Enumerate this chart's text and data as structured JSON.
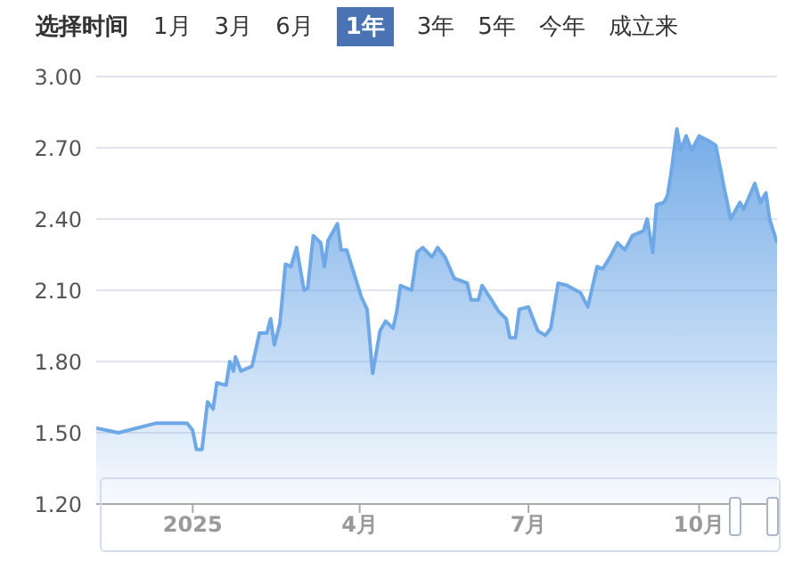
{
  "chart_data": {
    "type": "area",
    "annotations": [
      "选择时间",
      "1月",
      "3月",
      "6月",
      "1年",
      "3年",
      "5年",
      "今年",
      "成立来"
    ],
    "x": [
      "2024-11-10",
      "2024-11-22",
      "2024-12-12",
      "2024-12-29",
      "2025-01-01",
      "2025-01-03",
      "2025-01-06",
      "2025-01-09",
      "2025-01-12",
      "2025-01-14",
      "2025-01-19",
      "2025-01-21",
      "2025-01-23",
      "2025-01-24",
      "2025-01-27",
      "2025-02-02",
      "2025-02-06",
      "2025-02-10",
      "2025-02-12",
      "2025-02-14",
      "2025-02-17",
      "2025-02-20",
      "2025-02-23",
      "2025-02-26",
      "2025-03-02",
      "2025-03-04",
      "2025-03-07",
      "2025-03-11",
      "2025-03-13",
      "2025-03-15",
      "2025-03-20",
      "2025-03-22",
      "2025-03-25",
      "2025-03-29",
      "2025-04-02",
      "2025-04-05",
      "2025-04-08",
      "2025-04-12",
      "2025-04-15",
      "2025-04-19",
      "2025-04-21",
      "2025-04-23",
      "2025-04-29",
      "2025-05-02",
      "2025-05-05",
      "2025-05-10",
      "2025-05-13",
      "2025-05-17",
      "2025-05-22",
      "2025-05-29",
      "2025-05-31",
      "2025-06-04",
      "2025-06-06",
      "2025-06-11",
      "2025-06-15",
      "2025-06-19",
      "2025-06-21",
      "2025-06-24",
      "2025-06-26",
      "2025-07-01",
      "2025-07-06",
      "2025-07-10",
      "2025-07-13",
      "2025-07-17",
      "2025-07-22",
      "2025-07-29",
      "2025-08-02",
      "2025-08-07",
      "2025-08-10",
      "2025-08-14",
      "2025-08-18",
      "2025-08-22",
      "2025-08-26",
      "2025-09-01",
      "2025-09-03",
      "2025-09-06",
      "2025-09-08",
      "2025-09-12",
      "2025-09-14",
      "2025-09-16",
      "2025-09-19",
      "2025-09-21",
      "2025-09-24",
      "2025-09-27",
      "2025-10-01",
      "2025-10-06",
      "2025-10-10",
      "2025-10-14",
      "2025-10-18",
      "2025-10-23",
      "2025-10-25",
      "2025-10-31",
      "2025-11-03",
      "2025-11-06",
      "2025-11-08",
      "2025-11-12"
    ],
    "series": [
      {
        "color": "#6fa8e6",
        "values": [
          1.52,
          1.5,
          1.54,
          1.54,
          1.51,
          1.43,
          1.43,
          1.63,
          1.6,
          1.71,
          1.7,
          1.8,
          1.76,
          1.82,
          1.76,
          1.78,
          1.92,
          1.92,
          1.98,
          1.87,
          1.96,
          2.21,
          2.2,
          2.28,
          2.1,
          2.11,
          2.33,
          2.3,
          2.2,
          2.31,
          2.38,
          2.27,
          2.27,
          2.17,
          2.07,
          2.02,
          1.75,
          1.93,
          1.97,
          1.94,
          2.01,
          2.12,
          2.1,
          2.26,
          2.28,
          2.24,
          2.28,
          2.24,
          2.15,
          2.13,
          2.06,
          2.06,
          2.12,
          2.06,
          2.01,
          1.98,
          1.9,
          1.9,
          2.02,
          2.03,
          1.93,
          1.91,
          1.94,
          2.13,
          2.12,
          2.09,
          2.03,
          2.2,
          2.19,
          2.24,
          2.3,
          2.27,
          2.33,
          2.35,
          2.4,
          2.26,
          2.46,
          2.47,
          2.5,
          2.6,
          2.78,
          2.69,
          2.75,
          2.69,
          2.75,
          2.73,
          2.71,
          2.55,
          2.4,
          2.47,
          2.44,
          2.55,
          2.47,
          2.51,
          2.4,
          2.3
        ]
      }
    ],
    "xlim": [
      "2024-11-10",
      "2025-11-12"
    ],
    "xticks": [
      {
        "value": "2025-01-01",
        "label": "2025"
      },
      {
        "value": "2025-04-01",
        "label": "4月"
      },
      {
        "value": "2025-07-01",
        "label": "7月"
      },
      {
        "value": "2025-10-01",
        "label": "10月"
      }
    ],
    "ylim": [
      1.2,
      3.0
    ],
    "yticks": [
      {
        "value": 1.2,
        "label": "1.20"
      },
      {
        "value": 1.5,
        "label": "1.50"
      },
      {
        "value": 1.8,
        "label": "1.80"
      },
      {
        "value": 2.1,
        "label": "2.10"
      },
      {
        "value": 2.4,
        "label": "2.40"
      },
      {
        "value": 2.7,
        "label": "2.70"
      },
      {
        "value": 3.0,
        "label": "3.00"
      }
    ],
    "grid": "y"
  }
}
